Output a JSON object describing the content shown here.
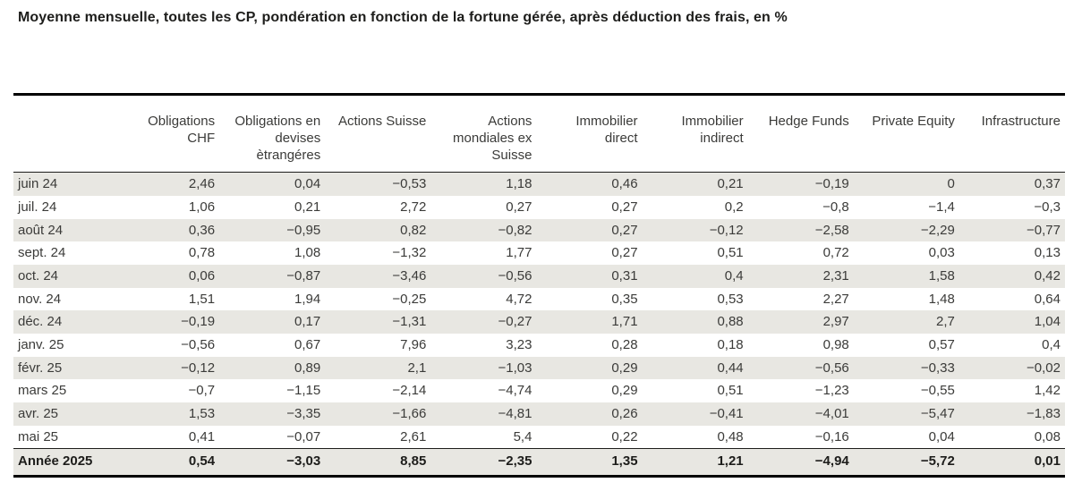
{
  "chart_data": {
    "type": "table",
    "title": "Moyenne mensuelle, toutes les CP, pondération en fonction de la fortune gérée, après déduction des frais, en %",
    "unit": "%",
    "decimal_separator": ",",
    "columns": [
      "Obligations CHF",
      "Obligations en devises ètrangéres",
      "Actions Suisse",
      "Actions mondiales ex Suisse",
      "Immobilier direct",
      "Immobilier indirect",
      "Hedge Funds",
      "Private Equity",
      "Infrastructure"
    ],
    "rows": [
      {
        "label": "juin 24",
        "values": [
          "2,46",
          "0,04",
          "−0,53",
          "1,18",
          "0,46",
          "0,21",
          "−0,19",
          "0",
          "0,37"
        ]
      },
      {
        "label": "juil. 24",
        "values": [
          "1,06",
          "0,21",
          "2,72",
          "0,27",
          "0,27",
          "0,2",
          "−0,8",
          "−1,4",
          "−0,3"
        ]
      },
      {
        "label": "août 24",
        "values": [
          "0,36",
          "−0,95",
          "0,82",
          "−0,82",
          "0,27",
          "−0,12",
          "−2,58",
          "−2,29",
          "−0,77"
        ]
      },
      {
        "label": "sept. 24",
        "values": [
          "0,78",
          "1,08",
          "−1,32",
          "1,77",
          "0,27",
          "0,51",
          "0,72",
          "0,03",
          "0,13"
        ]
      },
      {
        "label": "oct. 24",
        "values": [
          "0,06",
          "−0,87",
          "−3,46",
          "−0,56",
          "0,31",
          "0,4",
          "2,31",
          "1,58",
          "0,42"
        ]
      },
      {
        "label": "nov. 24",
        "values": [
          "1,51",
          "1,94",
          "−0,25",
          "4,72",
          "0,35",
          "0,53",
          "2,27",
          "1,48",
          "0,64"
        ]
      },
      {
        "label": "déc. 24",
        "values": [
          "−0,19",
          "0,17",
          "−1,31",
          "−0,27",
          "1,71",
          "0,88",
          "2,97",
          "2,7",
          "1,04"
        ]
      },
      {
        "label": "janv. 25",
        "values": [
          "−0,56",
          "0,67",
          "7,96",
          "3,23",
          "0,28",
          "0,18",
          "0,98",
          "0,57",
          "0,4"
        ]
      },
      {
        "label": "févr. 25",
        "values": [
          "−0,12",
          "0,89",
          "2,1",
          "−1,03",
          "0,29",
          "0,44",
          "−0,56",
          "−0,33",
          "−0,02"
        ]
      },
      {
        "label": "mars 25",
        "values": [
          "−0,7",
          "−1,15",
          "−2,14",
          "−4,74",
          "0,29",
          "0,51",
          "−1,23",
          "−0,55",
          "1,42"
        ]
      },
      {
        "label": "avr. 25",
        "values": [
          "1,53",
          "−3,35",
          "−1,66",
          "−4,81",
          "0,26",
          "−0,41",
          "−4,01",
          "−5,47",
          "−1,83"
        ]
      },
      {
        "label": "mai 25",
        "values": [
          "0,41",
          "−0,07",
          "2,61",
          "5,4",
          "0,22",
          "0,48",
          "−0,16",
          "0,04",
          "0,08"
        ]
      }
    ],
    "total_row": {
      "label": "Année 2025",
      "values": [
        "0,54",
        "−3,03",
        "8,85",
        "−2,35",
        "1,35",
        "1,21",
        "−4,94",
        "−5,72",
        "0,01"
      ]
    },
    "colors": {
      "stripe_background": "#e8e7e2",
      "border": "#000000",
      "text": "#3b3b39",
      "bold_text": "#1d1d1b"
    },
    "layout": {
      "grid": false,
      "stripes": "alternating starting with first data row",
      "legend_position": "none"
    }
  }
}
